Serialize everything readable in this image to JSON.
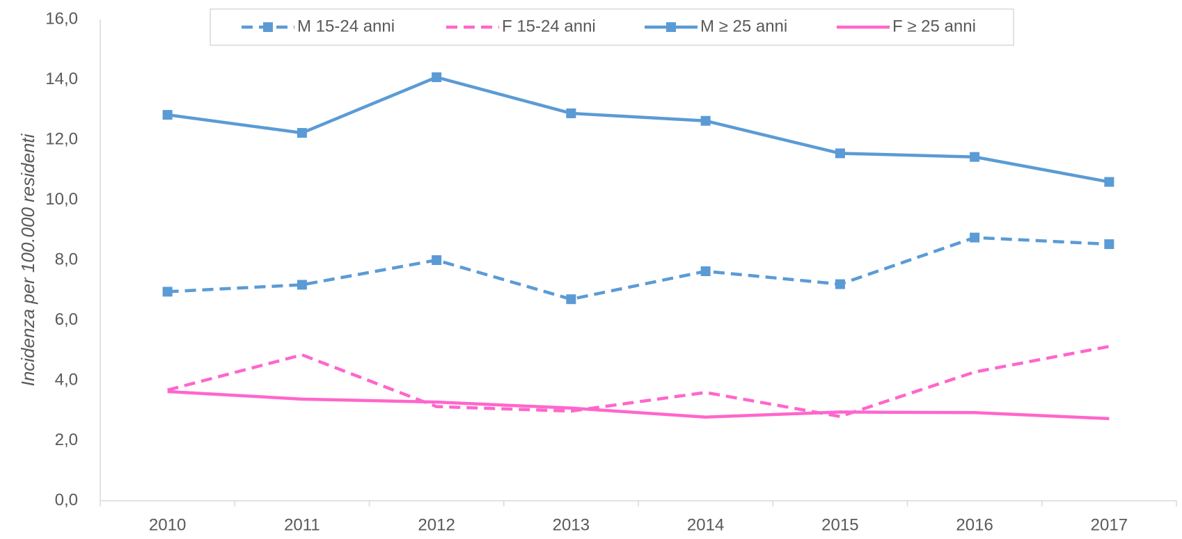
{
  "chart_data": {
    "type": "line",
    "y_label": "Incidenza per 100.000 residenti",
    "categories": [
      "2010",
      "2011",
      "2012",
      "2013",
      "2014",
      "2015",
      "2016",
      "2017"
    ],
    "series": [
      {
        "name": "M 15-24 anni",
        "color": "#5b9bd5",
        "dashed": true,
        "marker": "square",
        "values": [
          6.95,
          7.18,
          8.0,
          6.7,
          7.63,
          7.2,
          8.75,
          8.53
        ]
      },
      {
        "name": "F 15-24 anni",
        "color": "#ff66cc",
        "dashed": true,
        "marker": "none",
        "values": [
          3.68,
          4.85,
          3.13,
          2.98,
          3.6,
          2.8,
          4.28,
          5.13
        ]
      },
      {
        "name": "M ≥ 25 anni",
        "color": "#5b9bd5",
        "dashed": false,
        "marker": "square",
        "values": [
          12.83,
          12.23,
          14.08,
          12.88,
          12.63,
          11.55,
          11.43,
          10.6
        ]
      },
      {
        "name": "F ≥ 25 anni",
        "color": "#ff66cc",
        "dashed": false,
        "marker": "none",
        "values": [
          3.63,
          3.38,
          3.28,
          3.08,
          2.78,
          2.95,
          2.93,
          2.73
        ]
      }
    ],
    "ylim": [
      0,
      16
    ],
    "yticks": [
      {
        "value": 0,
        "label": "0,0"
      },
      {
        "value": 2,
        "label": "2,0"
      },
      {
        "value": 4,
        "label": "4,0"
      },
      {
        "value": 6,
        "label": "6,0"
      },
      {
        "value": 8,
        "label": "8,0"
      },
      {
        "value": 10,
        "label": "10,0"
      },
      {
        "value": 12,
        "label": "12,0"
      },
      {
        "value": 14,
        "label": "14,0"
      },
      {
        "value": 16,
        "label": "16,0"
      }
    ],
    "grid": false,
    "legend": "top"
  }
}
